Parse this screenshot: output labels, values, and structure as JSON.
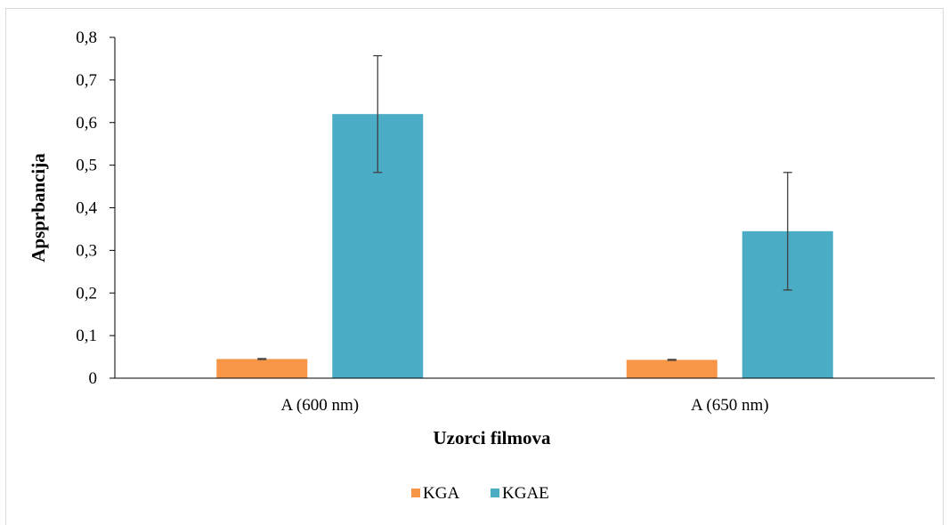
{
  "chart_data": {
    "type": "bar",
    "categories": [
      "A (600 nm)",
      "A (650 nm)"
    ],
    "series": [
      {
        "name": "KGA",
        "values": [
          0.045,
          0.043
        ],
        "errors": [
          0.001,
          0.001
        ],
        "color": "#f79646"
      },
      {
        "name": "KGAE",
        "values": [
          0.62,
          0.345
        ],
        "errors": [
          0.137,
          0.138
        ],
        "color": "#4bacc6"
      }
    ],
    "title": "",
    "xlabel": "Uzorci filmova",
    "ylabel": "Apsprbancija",
    "ylim": [
      0,
      0.8
    ],
    "yticks": [
      "0",
      "0,1",
      "0,2",
      "0,3",
      "0,4",
      "0,5",
      "0,6",
      "0,7",
      "0,8"
    ],
    "grid": false,
    "legend": "bottom"
  }
}
